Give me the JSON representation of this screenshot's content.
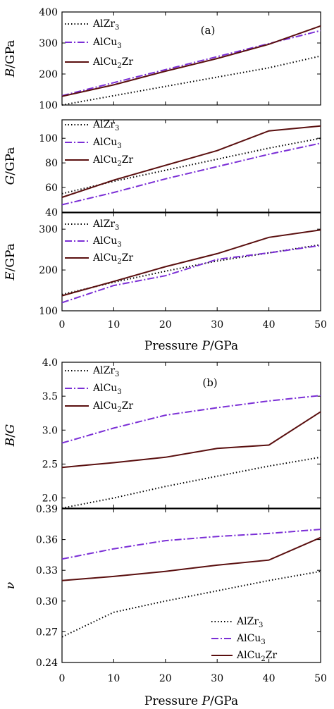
{
  "chart_data": [
    {
      "type": "line",
      "panel_tag": "(a)",
      "ylabel": "B/GPa",
      "xlabel": "",
      "ylim": [
        100,
        400
      ],
      "yticks": [
        100,
        200,
        300,
        400
      ],
      "xlim": [
        0,
        50
      ],
      "xticks": [],
      "legend": "top-left",
      "x": [
        0,
        10,
        20,
        30,
        40,
        50
      ],
      "series": [
        {
          "name": "AlZr3",
          "values": [
            100,
            130,
            160,
            190,
            220,
            258
          ]
        },
        {
          "name": "AlCu3",
          "values": [
            130,
            172,
            214,
            256,
            298,
            340
          ]
        },
        {
          "name": "AlCu2Zr",
          "values": [
            128,
            165,
            209,
            250,
            296,
            355
          ]
        }
      ]
    },
    {
      "type": "line",
      "panel_tag": "",
      "ylabel": "G/GPa",
      "xlabel": "",
      "ylim": [
        40,
        115
      ],
      "yticks": [
        40,
        60,
        80,
        100
      ],
      "xlim": [
        0,
        50
      ],
      "xticks": [],
      "legend": "top-left",
      "x": [
        0,
        10,
        20,
        30,
        40,
        50
      ],
      "series": [
        {
          "name": "AlZr3",
          "values": [
            55,
            65,
            74,
            83,
            92,
            100
          ]
        },
        {
          "name": "AlCu3",
          "values": [
            46,
            56,
            67,
            77,
            87,
            96
          ]
        },
        {
          "name": "AlCu2Zr",
          "values": [
            52,
            66,
            78,
            90,
            106,
            110
          ]
        }
      ]
    },
    {
      "type": "line",
      "panel_tag": "",
      "ylabel": "E/GPa",
      "xlabel": "Pressure P/GPa",
      "ylim": [
        100,
        340
      ],
      "yticks": [
        100,
        200,
        300
      ],
      "xlim": [
        0,
        50
      ],
      "xticks": [
        0,
        10,
        20,
        30,
        40,
        50
      ],
      "legend": "top-left",
      "x": [
        0,
        10,
        20,
        30,
        40,
        50
      ],
      "series": [
        {
          "name": "AlZr3",
          "values": [
            140,
            170,
            197,
            222,
            242,
            262
          ]
        },
        {
          "name": "AlCu3",
          "values": [
            120,
            162,
            186,
            226,
            242,
            260
          ]
        },
        {
          "name": "AlCu2Zr",
          "values": [
            137,
            172,
            208,
            240,
            280,
            298
          ]
        }
      ]
    },
    {
      "type": "line",
      "panel_tag": "(b)",
      "ylabel": "B/G",
      "xlabel": "",
      "ylim": [
        1.85,
        4.0
      ],
      "yticks": [
        2.0,
        2.5,
        3.0,
        3.5,
        4.0
      ],
      "xlim": [
        0,
        50
      ],
      "xticks": [],
      "legend": "top-left",
      "x": [
        0,
        10,
        20,
        30,
        40,
        50
      ],
      "series": [
        {
          "name": "AlZr3",
          "values": [
            1.85,
            2.0,
            2.17,
            2.32,
            2.47,
            2.6
          ]
        },
        {
          "name": "AlCu3",
          "values": [
            2.81,
            3.03,
            3.22,
            3.33,
            3.43,
            3.51
          ]
        },
        {
          "name": "AlCu2Zr",
          "values": [
            2.45,
            2.52,
            2.6,
            2.73,
            2.78,
            3.27
          ]
        }
      ]
    },
    {
      "type": "line",
      "panel_tag": "",
      "ylabel": "ν",
      "xlabel": "Pressure P/GPa",
      "ylim": [
        0.24,
        0.39
      ],
      "yticks": [
        0.24,
        0.27,
        0.3,
        0.33,
        0.36,
        0.39
      ],
      "xlim": [
        0,
        50
      ],
      "xticks": [
        0,
        10,
        20,
        30,
        40,
        50
      ],
      "legend": "bottom-right",
      "x": [
        0,
        10,
        20,
        30,
        40,
        50
      ],
      "series": [
        {
          "name": "AlZr3",
          "values": [
            0.265,
            0.289,
            0.3,
            0.31,
            0.32,
            0.329
          ]
        },
        {
          "name": "AlCu3",
          "values": [
            0.341,
            0.351,
            0.359,
            0.363,
            0.366,
            0.37
          ]
        },
        {
          "name": "AlCu2Zr",
          "values": [
            0.32,
            0.324,
            0.329,
            0.335,
            0.34,
            0.362
          ]
        }
      ]
    }
  ],
  "legend_labels": [
    {
      "base": "AlZr",
      "sub": "3",
      "tail": ""
    },
    {
      "base": "AlCu",
      "sub": "3",
      "tail": ""
    },
    {
      "base": "AlCu",
      "sub": "2",
      "tail": "Zr"
    }
  ],
  "styles": {
    "AlZr3": {
      "color": "#000000",
      "dash": "1.5,3"
    },
    "AlCu3": {
      "color": "#7b2fd6",
      "dash": "10,3,2,3"
    },
    "AlCu2Zr": {
      "color": "#5a0f0f",
      "dash": ""
    }
  }
}
